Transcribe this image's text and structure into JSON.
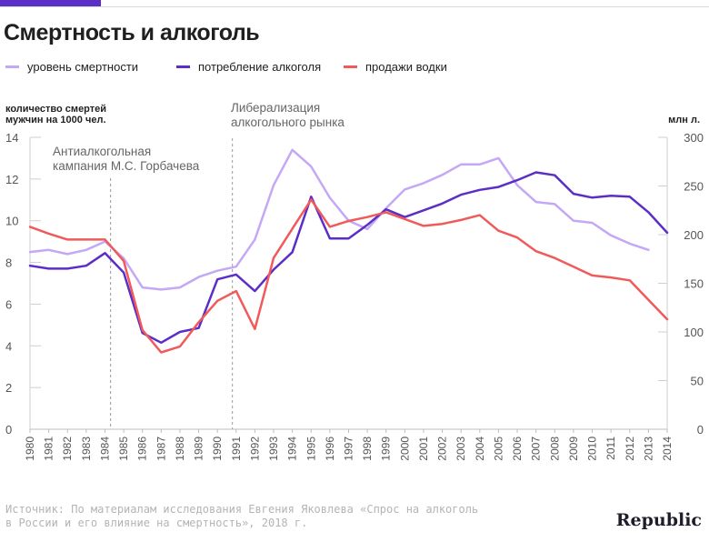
{
  "title": "Смертность и алкоголь",
  "legend": [
    {
      "label": "уровень смертности",
      "color": "#c4a8f5"
    },
    {
      "label": "потребление алкоголя",
      "color": "#5b2ec8"
    },
    {
      "label": "продажи водки",
      "color": "#f05a5a"
    }
  ],
  "left_axis_label_line1": "количество смертей",
  "left_axis_label_line2": "мужчин на 1000 чел.",
  "right_axis_label": "млн л.",
  "annotations": [
    {
      "text_line1": "Антиалкогольная",
      "text_line2": "кампания М.С. Горбачева",
      "year": 1984.3
    },
    {
      "text_line1": "Либерализация",
      "text_line2": "алкогольного рынка",
      "year": 1990.8
    }
  ],
  "source_line1": "Источник: По материалам исследования Евгения Яковлева «Спрос на алкоголь",
  "source_line2": "в России и его влияние на смертность», 2018 г.",
  "logo": "Republic",
  "chart_data": {
    "type": "line",
    "xlim": [
      1980,
      2014
    ],
    "ylim_left": [
      0,
      14
    ],
    "ylim_right": [
      0,
      300
    ],
    "yticks_left": [
      0,
      2,
      4,
      6,
      8,
      10,
      12,
      14
    ],
    "yticks_right": [
      0,
      50,
      100,
      150,
      200,
      250,
      300
    ],
    "x_ticks": [
      1980,
      1981,
      1982,
      1983,
      1984,
      1985,
      1986,
      1987,
      1988,
      1989,
      1990,
      1991,
      1992,
      1993,
      1994,
      1995,
      1996,
      1997,
      1998,
      1999,
      2000,
      2001,
      2002,
      2003,
      2004,
      2005,
      2006,
      2007,
      2008,
      2009,
      2010,
      2011,
      2012,
      2013,
      2014
    ],
    "series": [
      {
        "name": "уровень смертности",
        "axis": "left",
        "color": "#c4a8f5",
        "points": [
          [
            1980,
            8.5
          ],
          [
            1981,
            8.6
          ],
          [
            1982,
            8.4
          ],
          [
            1983,
            8.6
          ],
          [
            1984,
            9.0
          ],
          [
            1985,
            8.2
          ],
          [
            1986,
            6.8
          ],
          [
            1987,
            6.7
          ],
          [
            1988,
            6.8
          ],
          [
            1989,
            7.3
          ],
          [
            1990,
            7.6
          ],
          [
            1991,
            7.8
          ],
          [
            1992,
            9.1
          ],
          [
            1993,
            11.7
          ],
          [
            1994,
            13.4
          ],
          [
            1995,
            12.6
          ],
          [
            1996,
            11.1
          ],
          [
            1997,
            10.0
          ],
          [
            1998,
            9.6
          ],
          [
            1999,
            10.6
          ],
          [
            2000,
            11.5
          ],
          [
            2001,
            11.8
          ],
          [
            2002,
            12.2
          ],
          [
            2003,
            12.7
          ],
          [
            2004,
            12.7
          ],
          [
            2005,
            13.0
          ],
          [
            2006,
            11.7
          ],
          [
            2007,
            10.9
          ],
          [
            2008,
            10.8
          ],
          [
            2009,
            10.0
          ],
          [
            2010,
            9.9
          ],
          [
            2011,
            9.3
          ],
          [
            2012,
            8.9
          ],
          [
            2013,
            8.6
          ]
        ]
      },
      {
        "name": "потребление алкоголя",
        "axis": "right",
        "color": "#5b2ec8",
        "points": [
          [
            1980,
            168
          ],
          [
            1981,
            165
          ],
          [
            1982,
            165
          ],
          [
            1983,
            168
          ],
          [
            1984,
            181
          ],
          [
            1985,
            161
          ],
          [
            1986,
            99
          ],
          [
            1987,
            89
          ],
          [
            1988,
            100
          ],
          [
            1989,
            104
          ],
          [
            1990,
            154
          ],
          [
            1991,
            159
          ],
          [
            1992,
            142
          ],
          [
            1993,
            164
          ],
          [
            1994,
            182
          ],
          [
            1995,
            239
          ],
          [
            1996,
            196
          ],
          [
            1997,
            196
          ],
          [
            1998,
            210
          ],
          [
            1999,
            226
          ],
          [
            2000,
            218
          ],
          [
            2001,
            225
          ],
          [
            2002,
            232
          ],
          [
            2003,
            241
          ],
          [
            2004,
            246
          ],
          [
            2005,
            249
          ],
          [
            2006,
            256
          ],
          [
            2007,
            264
          ],
          [
            2008,
            261
          ],
          [
            2009,
            242
          ],
          [
            2010,
            238
          ],
          [
            2011,
            240
          ],
          [
            2012,
            239
          ],
          [
            2013,
            223
          ],
          [
            2014,
            202
          ]
        ]
      },
      {
        "name": "продажи водки",
        "axis": "right",
        "color": "#f05a5a",
        "points": [
          [
            1980,
            208
          ],
          [
            1981,
            201
          ],
          [
            1982,
            195
          ],
          [
            1983,
            195
          ],
          [
            1984,
            195
          ],
          [
            1985,
            173
          ],
          [
            1986,
            102
          ],
          [
            1987,
            79
          ],
          [
            1988,
            85
          ],
          [
            1989,
            110
          ],
          [
            1990,
            132
          ],
          [
            1991,
            142
          ],
          [
            1992,
            103
          ],
          [
            1993,
            176
          ],
          [
            1994,
            206
          ],
          [
            1995,
            236
          ],
          [
            1996,
            208
          ],
          [
            1997,
            214
          ],
          [
            1998,
            218
          ],
          [
            1999,
            223
          ],
          [
            2000,
            216
          ],
          [
            2001,
            209
          ],
          [
            2002,
            211
          ],
          [
            2003,
            215
          ],
          [
            2004,
            220
          ],
          [
            2005,
            204
          ],
          [
            2006,
            197
          ],
          [
            2007,
            183
          ],
          [
            2008,
            176
          ],
          [
            2009,
            167
          ],
          [
            2010,
            158
          ],
          [
            2011,
            156
          ],
          [
            2012,
            153
          ],
          [
            2013,
            133
          ],
          [
            2014,
            113
          ]
        ]
      }
    ]
  }
}
